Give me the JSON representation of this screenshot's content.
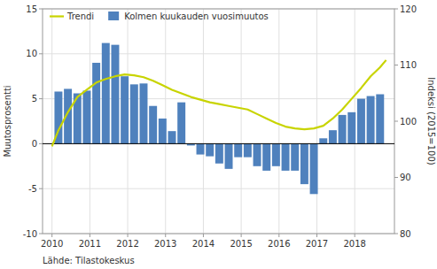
{
  "chart_data": {
    "type": "bar",
    "ylabel": "Muutosprosentti",
    "y2label": "Indeksi (2015=100)",
    "source": "Lähde: Tilastokeskus",
    "xlim": [
      2009.75,
      2019.05
    ],
    "xticks": [
      2010,
      2011,
      2012,
      2013,
      2014,
      2015,
      2016,
      2017,
      2018
    ],
    "ylim": [
      -10,
      15
    ],
    "yticks": [
      -10,
      -5,
      0,
      5,
      10,
      15
    ],
    "y2lim": [
      80,
      120
    ],
    "y2ticks": [
      80,
      90,
      100,
      110,
      120
    ],
    "grid": true,
    "legend": "upper left",
    "series": [
      {
        "name": "Kolmen kuukauden vuosimuutos",
        "type": "bar",
        "color": "#4f81bd",
        "x": [
          2010.17,
          2010.42,
          2010.67,
          2010.92,
          2011.17,
          2011.42,
          2011.67,
          2011.92,
          2012.17,
          2012.42,
          2012.67,
          2012.92,
          2013.17,
          2013.42,
          2013.67,
          2013.92,
          2014.17,
          2014.42,
          2014.67,
          2014.92,
          2015.17,
          2015.42,
          2015.67,
          2015.92,
          2016.17,
          2016.42,
          2016.67,
          2016.92,
          2017.17,
          2017.42,
          2017.67,
          2017.92,
          2018.17,
          2018.42,
          2018.67
        ],
        "values": [
          5.8,
          6.1,
          5.6,
          5.9,
          9.0,
          11.2,
          11.0,
          7.5,
          6.6,
          6.7,
          4.2,
          2.8,
          1.4,
          4.6,
          -0.2,
          -1.2,
          -1.4,
          -2.2,
          -2.8,
          -1.5,
          -1.5,
          -2.5,
          -3.0,
          -2.5,
          -3.0,
          -3.0,
          -4.5,
          -5.6,
          0.6,
          1.5,
          3.2,
          3.5,
          5.0,
          5.3,
          5.5
        ]
      },
      {
        "name": "Trendi",
        "type": "line",
        "color": "#c8d400",
        "x": [
          2010.0,
          2010.17,
          2010.42,
          2010.67,
          2010.92,
          2011.17,
          2011.42,
          2011.67,
          2011.92,
          2012.17,
          2012.42,
          2012.67,
          2012.92,
          2013.17,
          2013.42,
          2013.67,
          2013.92,
          2014.17,
          2014.42,
          2014.67,
          2014.92,
          2015.17,
          2015.42,
          2015.67,
          2015.92,
          2016.17,
          2016.42,
          2016.67,
          2016.92,
          2017.17,
          2017.42,
          2017.67,
          2017.92,
          2018.17,
          2018.42,
          2018.67,
          2018.83
        ],
        "values": [
          -0.3,
          1.5,
          3.5,
          5.2,
          6.0,
          6.8,
          7.2,
          7.5,
          7.7,
          7.6,
          7.4,
          7.0,
          6.5,
          6.0,
          5.6,
          5.2,
          4.9,
          4.6,
          4.4,
          4.2,
          4.0,
          3.8,
          3.3,
          2.8,
          2.3,
          1.9,
          1.7,
          1.6,
          1.7,
          2.0,
          2.8,
          3.8,
          5.0,
          6.2,
          7.5,
          8.5,
          9.3
        ]
      }
    ]
  }
}
